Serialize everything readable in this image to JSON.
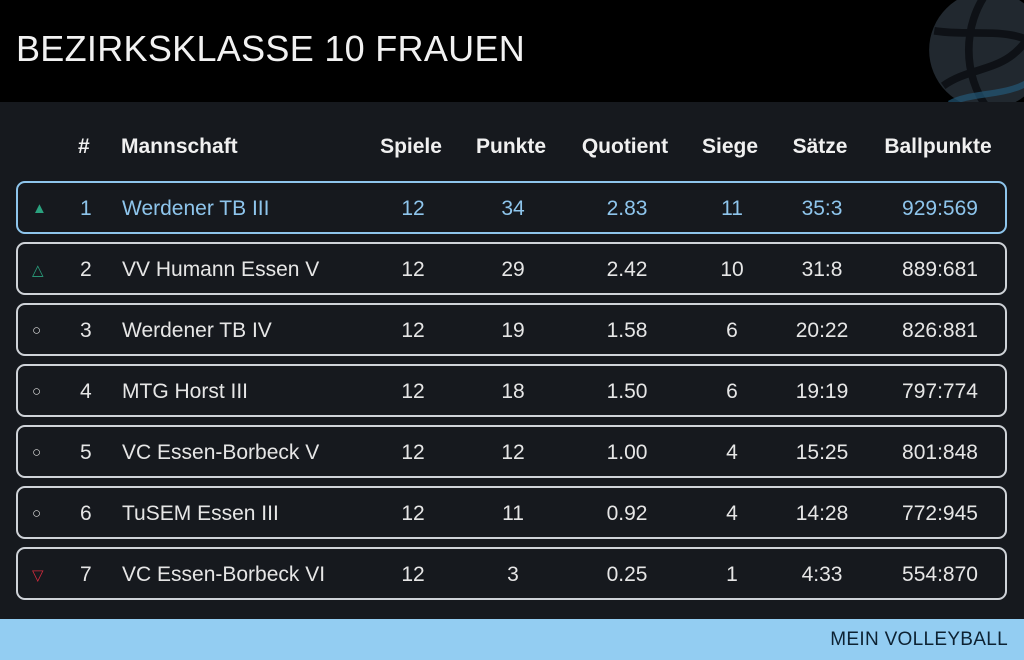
{
  "header": {
    "title": "BEZIRKSKLASSE 10 FRAUEN",
    "logo_icon": "volleyball-icon"
  },
  "table": {
    "columns": {
      "rank": "#",
      "team": "Mannschaft",
      "games": "Spiele",
      "points": "Punkte",
      "quotient": "Quotient",
      "wins": "Siege",
      "sets": "Sätze",
      "ballpoints": "Ballpunkte"
    },
    "rows": [
      {
        "indicator": "▲",
        "indicator_type": "promotion",
        "rank": "1",
        "team": "Werdener TB III",
        "games": "12",
        "points": "34",
        "quotient": "2.83",
        "wins": "11",
        "sets": "35:3",
        "ballpoints": "929:569"
      },
      {
        "indicator": "△",
        "indicator_type": "promotion-relegation",
        "rank": "2",
        "team": "VV Humann Essen V",
        "games": "12",
        "points": "29",
        "quotient": "2.42",
        "wins": "10",
        "sets": "31:8",
        "ballpoints": "889:681"
      },
      {
        "indicator": "○",
        "indicator_type": "neutral",
        "rank": "3",
        "team": "Werdener TB IV",
        "games": "12",
        "points": "19",
        "quotient": "1.58",
        "wins": "6",
        "sets": "20:22",
        "ballpoints": "826:881"
      },
      {
        "indicator": "○",
        "indicator_type": "neutral",
        "rank": "4",
        "team": "MTG Horst III",
        "games": "12",
        "points": "18",
        "quotient": "1.50",
        "wins": "6",
        "sets": "19:19",
        "ballpoints": "797:774"
      },
      {
        "indicator": "○",
        "indicator_type": "neutral",
        "rank": "5",
        "team": "VC Essen-Borbeck V",
        "games": "12",
        "points": "12",
        "quotient": "1.00",
        "wins": "4",
        "sets": "15:25",
        "ballpoints": "801:848"
      },
      {
        "indicator": "○",
        "indicator_type": "neutral",
        "rank": "6",
        "team": "TuSEM Essen III",
        "games": "12",
        "points": "11",
        "quotient": "0.92",
        "wins": "4",
        "sets": "14:28",
        "ballpoints": "772:945"
      },
      {
        "indicator": "▽",
        "indicator_type": "relegation",
        "rank": "7",
        "team": "VC Essen-Borbeck VI",
        "games": "12",
        "points": "3",
        "quotient": "0.25",
        "wins": "1",
        "sets": "4:33",
        "ballpoints": "554:870"
      }
    ]
  },
  "footer": {
    "brand": "MEIN VOLLEYBALL"
  },
  "colors": {
    "highlight": "#8ec5ec",
    "promotion": "#2aa27f",
    "relegation": "#d22a3c",
    "footer_bg": "#93cdf2"
  }
}
